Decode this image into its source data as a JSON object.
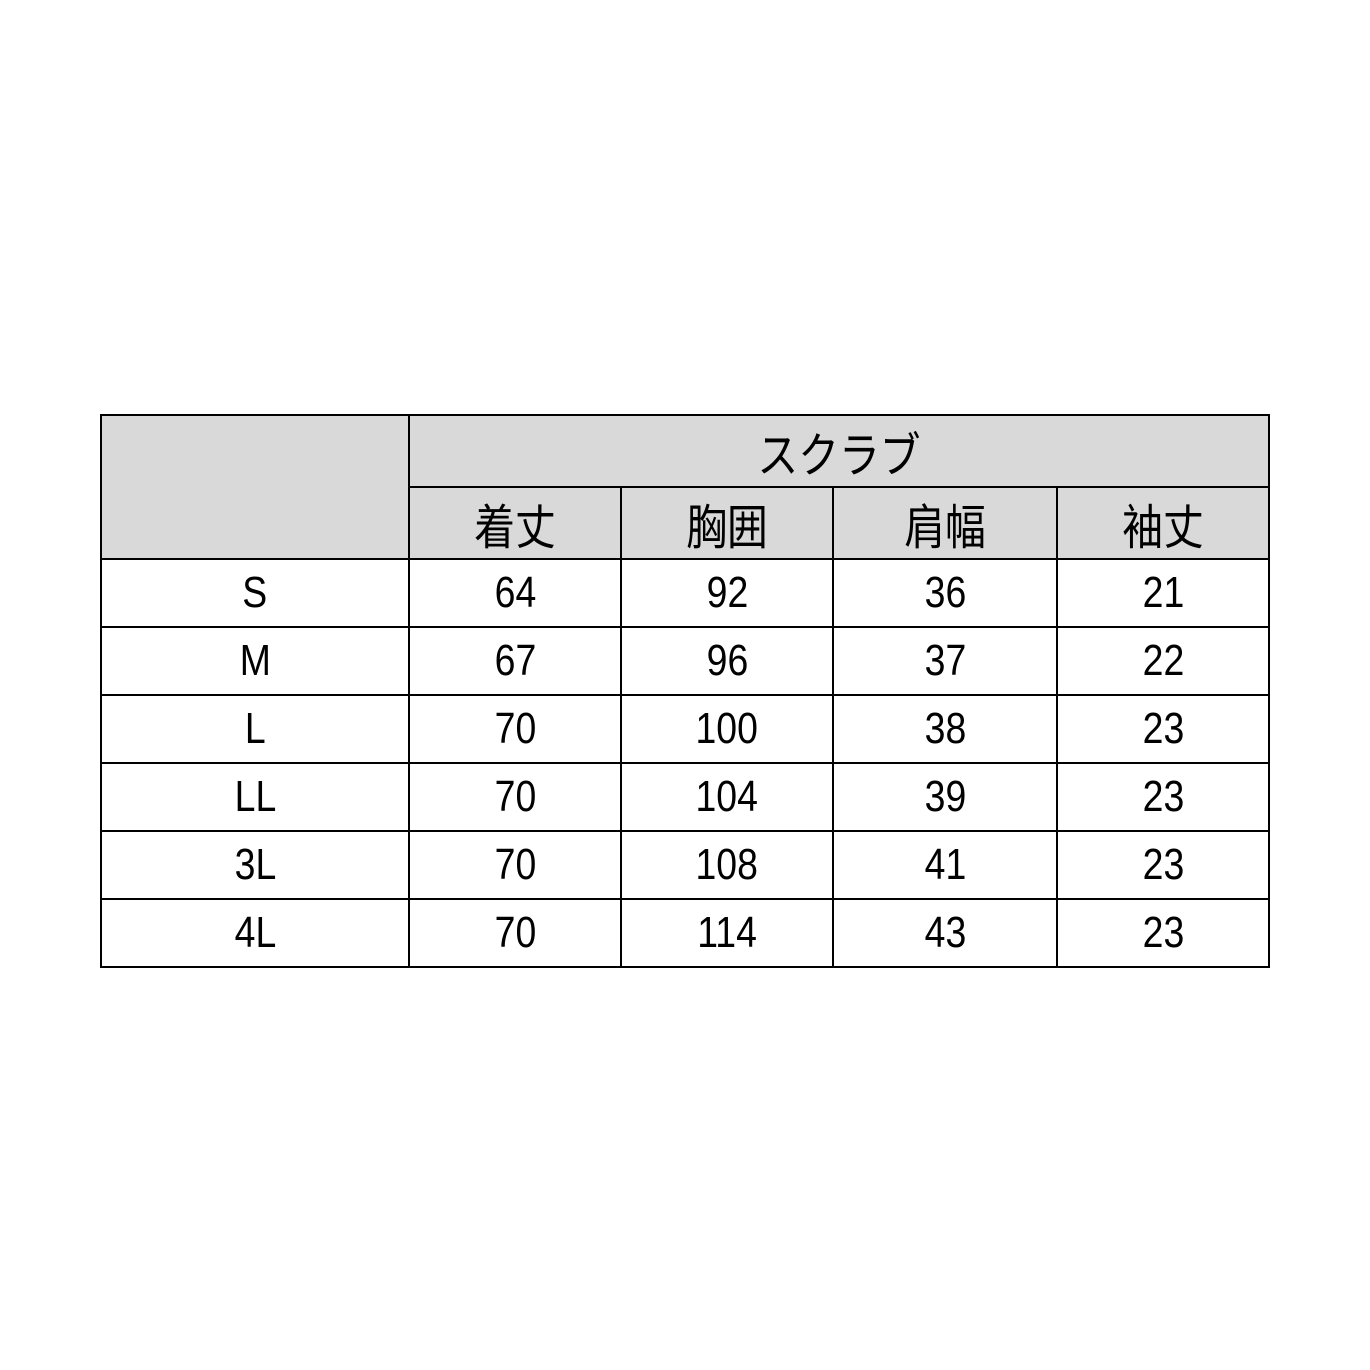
{
  "table": {
    "group_header": "スクラブ",
    "header_bg": "#d9d9d9",
    "columns": [
      "着丈",
      "胸囲",
      "肩幅",
      "袖丈"
    ],
    "rows": [
      {
        "size": "S",
        "values": [
          "64",
          "92",
          "36",
          "21"
        ]
      },
      {
        "size": "M",
        "values": [
          "67",
          "96",
          "37",
          "22"
        ]
      },
      {
        "size": "L",
        "values": [
          "70",
          "100",
          "38",
          "23"
        ]
      },
      {
        "size": "LL",
        "values": [
          "70",
          "104",
          "39",
          "23"
        ]
      },
      {
        "size": "3L",
        "values": [
          "70",
          "108",
          "41",
          "23"
        ]
      },
      {
        "size": "4L",
        "values": [
          "70",
          "114",
          "43",
          "23"
        ]
      }
    ]
  }
}
